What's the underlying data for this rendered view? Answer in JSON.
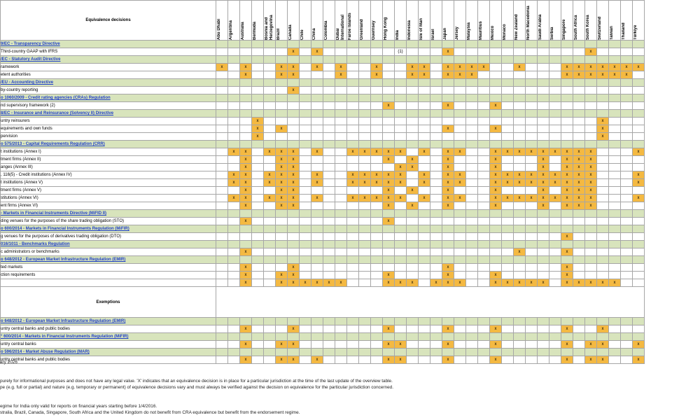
{
  "header_title": "Equivalence decisions",
  "jurisdictions": [
    "Abu Dhabi",
    "Argentina",
    "Australia",
    "Bermuda",
    "Bosnia and Herzegovina",
    "Brazil",
    "Canada",
    "Chile",
    "China",
    "Colombia",
    "Dubai International",
    "Faroe Islands",
    "Greenland",
    "Guernsey",
    "Hong Kong",
    "India",
    "Indonesia",
    "Isle of Man",
    "Israel",
    "Japan",
    "Jersey",
    "Malaysia",
    "Mauritius",
    "Mexico",
    "Monaco",
    "New Zealand",
    "North Macedonia",
    "Saudi Arabia",
    "Serbia",
    "Singapore",
    "South Africa",
    "South Korea",
    "Switzerland",
    "Taiwan",
    "Thailand",
    "Türkiye"
  ],
  "blocks": [
    {
      "rows": [
        {
          "type": "section",
          "label": "9/EC - Transparency Directive"
        },
        {
          "type": "item",
          "label": "Third-country GAAP with IFRS",
          "marks": [
            0,
            0,
            0,
            0,
            0,
            0,
            1,
            0,
            1,
            0,
            0,
            0,
            0,
            0,
            0,
            0,
            0,
            0,
            0,
            1,
            0,
            0,
            0,
            0,
            0,
            0,
            0,
            0,
            0,
            0,
            0,
            1,
            0,
            0,
            0,
            0
          ],
          "special": {
            "15": "(1)"
          }
        },
        {
          "type": "section",
          "label": "/EC - Statutory Audit Directive"
        },
        {
          "type": "item",
          "label": "ramework",
          "marks": [
            1,
            0,
            1,
            0,
            0,
            1,
            1,
            0,
            1,
            0,
            1,
            0,
            0,
            1,
            0,
            0,
            1,
            1,
            0,
            1,
            1,
            1,
            1,
            0,
            0,
            1,
            0,
            0,
            0,
            1,
            1,
            1,
            1,
            1,
            1,
            1
          ]
        },
        {
          "type": "item",
          "label": "etent authorities",
          "marks": [
            0,
            0,
            1,
            0,
            0,
            1,
            1,
            0,
            0,
            0,
            1,
            0,
            0,
            1,
            0,
            0,
            1,
            1,
            0,
            1,
            1,
            1,
            0,
            0,
            0,
            0,
            0,
            0,
            0,
            1,
            1,
            1,
            1,
            1,
            1,
            0
          ]
        },
        {
          "type": "section",
          "label": "/EU - Accounting Directive"
        },
        {
          "type": "item",
          "label": "by-country reporting",
          "marks": [
            0,
            0,
            0,
            0,
            0,
            0,
            1,
            0,
            0,
            0,
            0,
            0,
            0,
            0,
            0,
            0,
            0,
            0,
            0,
            0,
            0,
            0,
            0,
            0,
            0,
            0,
            0,
            0,
            0,
            0,
            0,
            0,
            0,
            0,
            0,
            0
          ]
        },
        {
          "type": "section",
          "label": "o 1060/2009 - Credit rating agencies (CRAs) Regulation"
        },
        {
          "type": "item",
          "label": "nd supervisory framework (2)",
          "marks": [
            0,
            0,
            0,
            0,
            0,
            0,
            0,
            0,
            0,
            0,
            0,
            0,
            0,
            0,
            1,
            0,
            0,
            0,
            0,
            1,
            0,
            0,
            0,
            1,
            0,
            0,
            0,
            0,
            0,
            0,
            0,
            0,
            0,
            0,
            0,
            0
          ]
        },
        {
          "type": "section",
          "label": "8/EC - Insurance and Reinsurance (Solvency II) Directive"
        },
        {
          "type": "item",
          "label": "untry reinsurers",
          "marks": [
            0,
            0,
            0,
            1,
            0,
            0,
            0,
            0,
            0,
            0,
            0,
            0,
            0,
            0,
            0,
            0,
            0,
            0,
            0,
            0,
            0,
            0,
            0,
            0,
            0,
            0,
            0,
            0,
            0,
            0,
            0,
            0,
            1,
            0,
            0,
            0
          ]
        },
        {
          "type": "item",
          "label": "equirements and own funds",
          "marks": [
            0,
            0,
            0,
            1,
            0,
            1,
            0,
            0,
            0,
            0,
            0,
            0,
            0,
            0,
            0,
            0,
            0,
            0,
            0,
            1,
            0,
            0,
            0,
            1,
            0,
            0,
            0,
            0,
            0,
            0,
            0,
            0,
            1,
            0,
            0,
            0
          ]
        },
        {
          "type": "item",
          "label": "pervision",
          "marks": [
            0,
            0,
            0,
            1,
            0,
            0,
            0,
            0,
            0,
            0,
            0,
            0,
            0,
            0,
            0,
            0,
            0,
            0,
            0,
            0,
            0,
            0,
            0,
            0,
            0,
            0,
            0,
            0,
            0,
            0,
            0,
            0,
            1,
            0,
            0,
            0
          ]
        },
        {
          "type": "section",
          "label": "o 575/2013 - Capital Requirements Regulation (CRR)"
        },
        {
          "type": "item",
          "label": "t institutions (Annex I)",
          "marks": [
            0,
            1,
            1,
            0,
            1,
            1,
            1,
            0,
            1,
            0,
            0,
            1,
            1,
            1,
            1,
            1,
            0,
            1,
            0,
            1,
            1,
            0,
            0,
            1,
            1,
            1,
            1,
            1,
            1,
            1,
            1,
            1,
            0,
            0,
            0,
            1
          ]
        },
        {
          "type": "item",
          "label": "tment firms (Annex II)",
          "marks": [
            0,
            0,
            1,
            0,
            0,
            1,
            1,
            0,
            0,
            0,
            0,
            0,
            0,
            0,
            1,
            0,
            1,
            0,
            0,
            1,
            0,
            0,
            0,
            1,
            0,
            0,
            0,
            1,
            0,
            1,
            1,
            1,
            0,
            0,
            0,
            0
          ]
        },
        {
          "type": "item",
          "label": "anges (Annex III)",
          "marks": [
            0,
            0,
            1,
            0,
            0,
            1,
            1,
            0,
            0,
            0,
            0,
            0,
            0,
            0,
            0,
            1,
            1,
            0,
            0,
            1,
            0,
            0,
            0,
            1,
            0,
            0,
            0,
            1,
            0,
            1,
            1,
            1,
            0,
            0,
            0,
            0
          ]
        },
        {
          "type": "item",
          "label": ", 116(5)  - Credit institutions (Annex IV)",
          "marks": [
            0,
            1,
            1,
            0,
            1,
            1,
            1,
            0,
            1,
            0,
            0,
            1,
            1,
            1,
            1,
            1,
            0,
            1,
            0,
            1,
            1,
            0,
            0,
            1,
            1,
            1,
            1,
            1,
            1,
            1,
            1,
            1,
            0,
            0,
            0,
            1
          ]
        },
        {
          "type": "item",
          "label": "t institutions (Annex V)",
          "marks": [
            0,
            1,
            1,
            0,
            1,
            1,
            1,
            0,
            1,
            0,
            0,
            1,
            1,
            1,
            1,
            1,
            0,
            1,
            0,
            1,
            1,
            0,
            0,
            1,
            1,
            1,
            1,
            1,
            1,
            1,
            1,
            1,
            0,
            0,
            0,
            1
          ]
        },
        {
          "type": "item",
          "label": "tment firms (Annex V)",
          "marks": [
            0,
            0,
            1,
            0,
            0,
            1,
            1,
            0,
            0,
            0,
            0,
            0,
            0,
            0,
            1,
            0,
            1,
            0,
            0,
            1,
            0,
            0,
            0,
            1,
            0,
            0,
            0,
            1,
            0,
            1,
            1,
            1,
            0,
            0,
            0,
            0
          ]
        },
        {
          "type": "item",
          "label": "stitutions (Annex VI)",
          "marks": [
            0,
            1,
            1,
            0,
            1,
            1,
            1,
            0,
            1,
            0,
            0,
            1,
            1,
            1,
            1,
            1,
            0,
            1,
            0,
            1,
            1,
            0,
            0,
            1,
            1,
            1,
            1,
            1,
            1,
            1,
            1,
            1,
            0,
            0,
            0,
            1
          ]
        },
        {
          "type": "item",
          "label": "ent firms (Annex VI)",
          "marks": [
            0,
            0,
            1,
            0,
            0,
            1,
            1,
            0,
            0,
            0,
            0,
            0,
            0,
            0,
            1,
            0,
            1,
            0,
            0,
            1,
            0,
            0,
            0,
            1,
            0,
            0,
            0,
            1,
            0,
            1,
            1,
            1,
            0,
            0,
            0,
            0
          ]
        },
        {
          "type": "section",
          "label": "- Markets in Financial Instruments Directive (MiFID II)"
        },
        {
          "type": "item",
          "label": "ding venues for the purposes of the share trading obligation (STO)",
          "marks": [
            0,
            0,
            1,
            0,
            0,
            0,
            0,
            0,
            0,
            0,
            0,
            0,
            0,
            0,
            1,
            0,
            0,
            0,
            0,
            0,
            0,
            0,
            0,
            0,
            0,
            0,
            0,
            0,
            0,
            0,
            0,
            0,
            0,
            0,
            0,
            0
          ]
        },
        {
          "type": "section",
          "label": "o 600/2014 - Markets in Financial Instruments Regulation (MiFIR)"
        },
        {
          "type": "item",
          "label": "g venues for the purposes of derivatives trading obligation (DTO)",
          "marks": [
            0,
            0,
            0,
            0,
            0,
            0,
            0,
            0,
            0,
            0,
            0,
            0,
            0,
            0,
            0,
            0,
            0,
            0,
            0,
            0,
            0,
            0,
            0,
            0,
            0,
            0,
            0,
            0,
            0,
            1,
            0,
            0,
            0,
            0,
            0,
            0
          ]
        },
        {
          "type": "section",
          "label": "016/1011 - Benchmarks Regulation"
        },
        {
          "type": "item",
          "label": "c administrators or benchmarks",
          "marks": [
            0,
            0,
            1,
            0,
            0,
            0,
            0,
            0,
            0,
            0,
            0,
            0,
            0,
            0,
            0,
            0,
            0,
            0,
            0,
            0,
            0,
            0,
            0,
            0,
            0,
            1,
            0,
            0,
            0,
            1,
            0,
            0,
            0,
            0,
            0,
            0
          ]
        },
        {
          "type": "section",
          "label": "o 648/2012 - European Market Infrastructure Regulation (EMIR)"
        },
        {
          "type": "item",
          "label": "ted markets",
          "marks": [
            0,
            0,
            1,
            0,
            0,
            0,
            1,
            0,
            0,
            0,
            0,
            0,
            0,
            0,
            0,
            0,
            0,
            0,
            0,
            1,
            0,
            0,
            0,
            0,
            0,
            0,
            0,
            0,
            0,
            1,
            0,
            0,
            0,
            0,
            0,
            0
          ]
        },
        {
          "type": "item",
          "label": "ction requirements",
          "marks": [
            0,
            0,
            1,
            0,
            0,
            1,
            1,
            0,
            0,
            0,
            0,
            0,
            0,
            0,
            1,
            0,
            0,
            0,
            0,
            1,
            0,
            0,
            0,
            1,
            0,
            0,
            0,
            0,
            0,
            1,
            0,
            0,
            0,
            0,
            0,
            0
          ]
        },
        {
          "type": "item",
          "label": "",
          "marks": [
            0,
            0,
            1,
            0,
            0,
            1,
            1,
            1,
            1,
            1,
            1,
            0,
            0,
            0,
            1,
            1,
            1,
            0,
            1,
            1,
            1,
            0,
            0,
            1,
            1,
            1,
            1,
            1,
            0,
            1,
            1,
            1,
            1,
            1,
            0,
            0
          ]
        }
      ]
    },
    {
      "exemptions_title": "Exemptions"
    },
    {
      "rows": [
        {
          "type": "section",
          "label": "o 648/2012 - European Market Infrastructure Regulation (EMIR)"
        },
        {
          "type": "item",
          "label": "untry central banks and public bodies",
          "marks": [
            0,
            0,
            1,
            0,
            0,
            0,
            1,
            0,
            0,
            0,
            0,
            0,
            0,
            0,
            1,
            0,
            0,
            0,
            0,
            1,
            0,
            0,
            0,
            1,
            0,
            0,
            0,
            0,
            0,
            1,
            0,
            0,
            1,
            0,
            0,
            0
          ]
        },
        {
          "type": "section",
          "label": "° 600/2014 - Markets in Financial Instruments Regulation (MiFIR)"
        },
        {
          "type": "item",
          "label": "untry central banks",
          "marks": [
            0,
            0,
            1,
            0,
            0,
            1,
            1,
            0,
            0,
            0,
            0,
            0,
            0,
            0,
            1,
            1,
            0,
            0,
            0,
            1,
            0,
            0,
            0,
            1,
            0,
            0,
            0,
            0,
            0,
            1,
            0,
            1,
            1,
            0,
            0,
            1
          ]
        },
        {
          "type": "section",
          "label": "o 596/2014 - Market Abuse Regulation (MAR)"
        },
        {
          "type": "item",
          "label": "untry central banks and public bodies",
          "marks": [
            0,
            0,
            1,
            0,
            0,
            1,
            1,
            0,
            1,
            0,
            0,
            0,
            0,
            0,
            1,
            1,
            0,
            0,
            0,
            1,
            0,
            0,
            0,
            1,
            0,
            0,
            0,
            0,
            0,
            1,
            0,
            1,
            1,
            0,
            0,
            1
          ]
        }
      ]
    }
  ],
  "mark_symbol": "x",
  "colors": {
    "mark": "#f4b942",
    "section": "#d8e4bc",
    "link": "#1f3fc8"
  },
  "notes": {
    "date": "ary 2026",
    "line1": "purely for informational purposes and does not have any legal value. 'X' indicates that an equivalence decision is in place for a particular jurisdiction at the time of the last update of the overview table.",
    "line2": "pe (e.g. full or partial) and nature (e.g. temporary or permanent) of equivalence decisions vary and must always be verified against the decision on equivalence for the  particular jurisdiction concerned.",
    "fn1": "egime for India only valid for reports on financial years starting before 1/4/2016.",
    "fn2": "stralia, Brazil, Canada, Singapore, South Africa and the United Kingdom do not benefit from CRA equivalence but benefit from the endorsement regime."
  }
}
